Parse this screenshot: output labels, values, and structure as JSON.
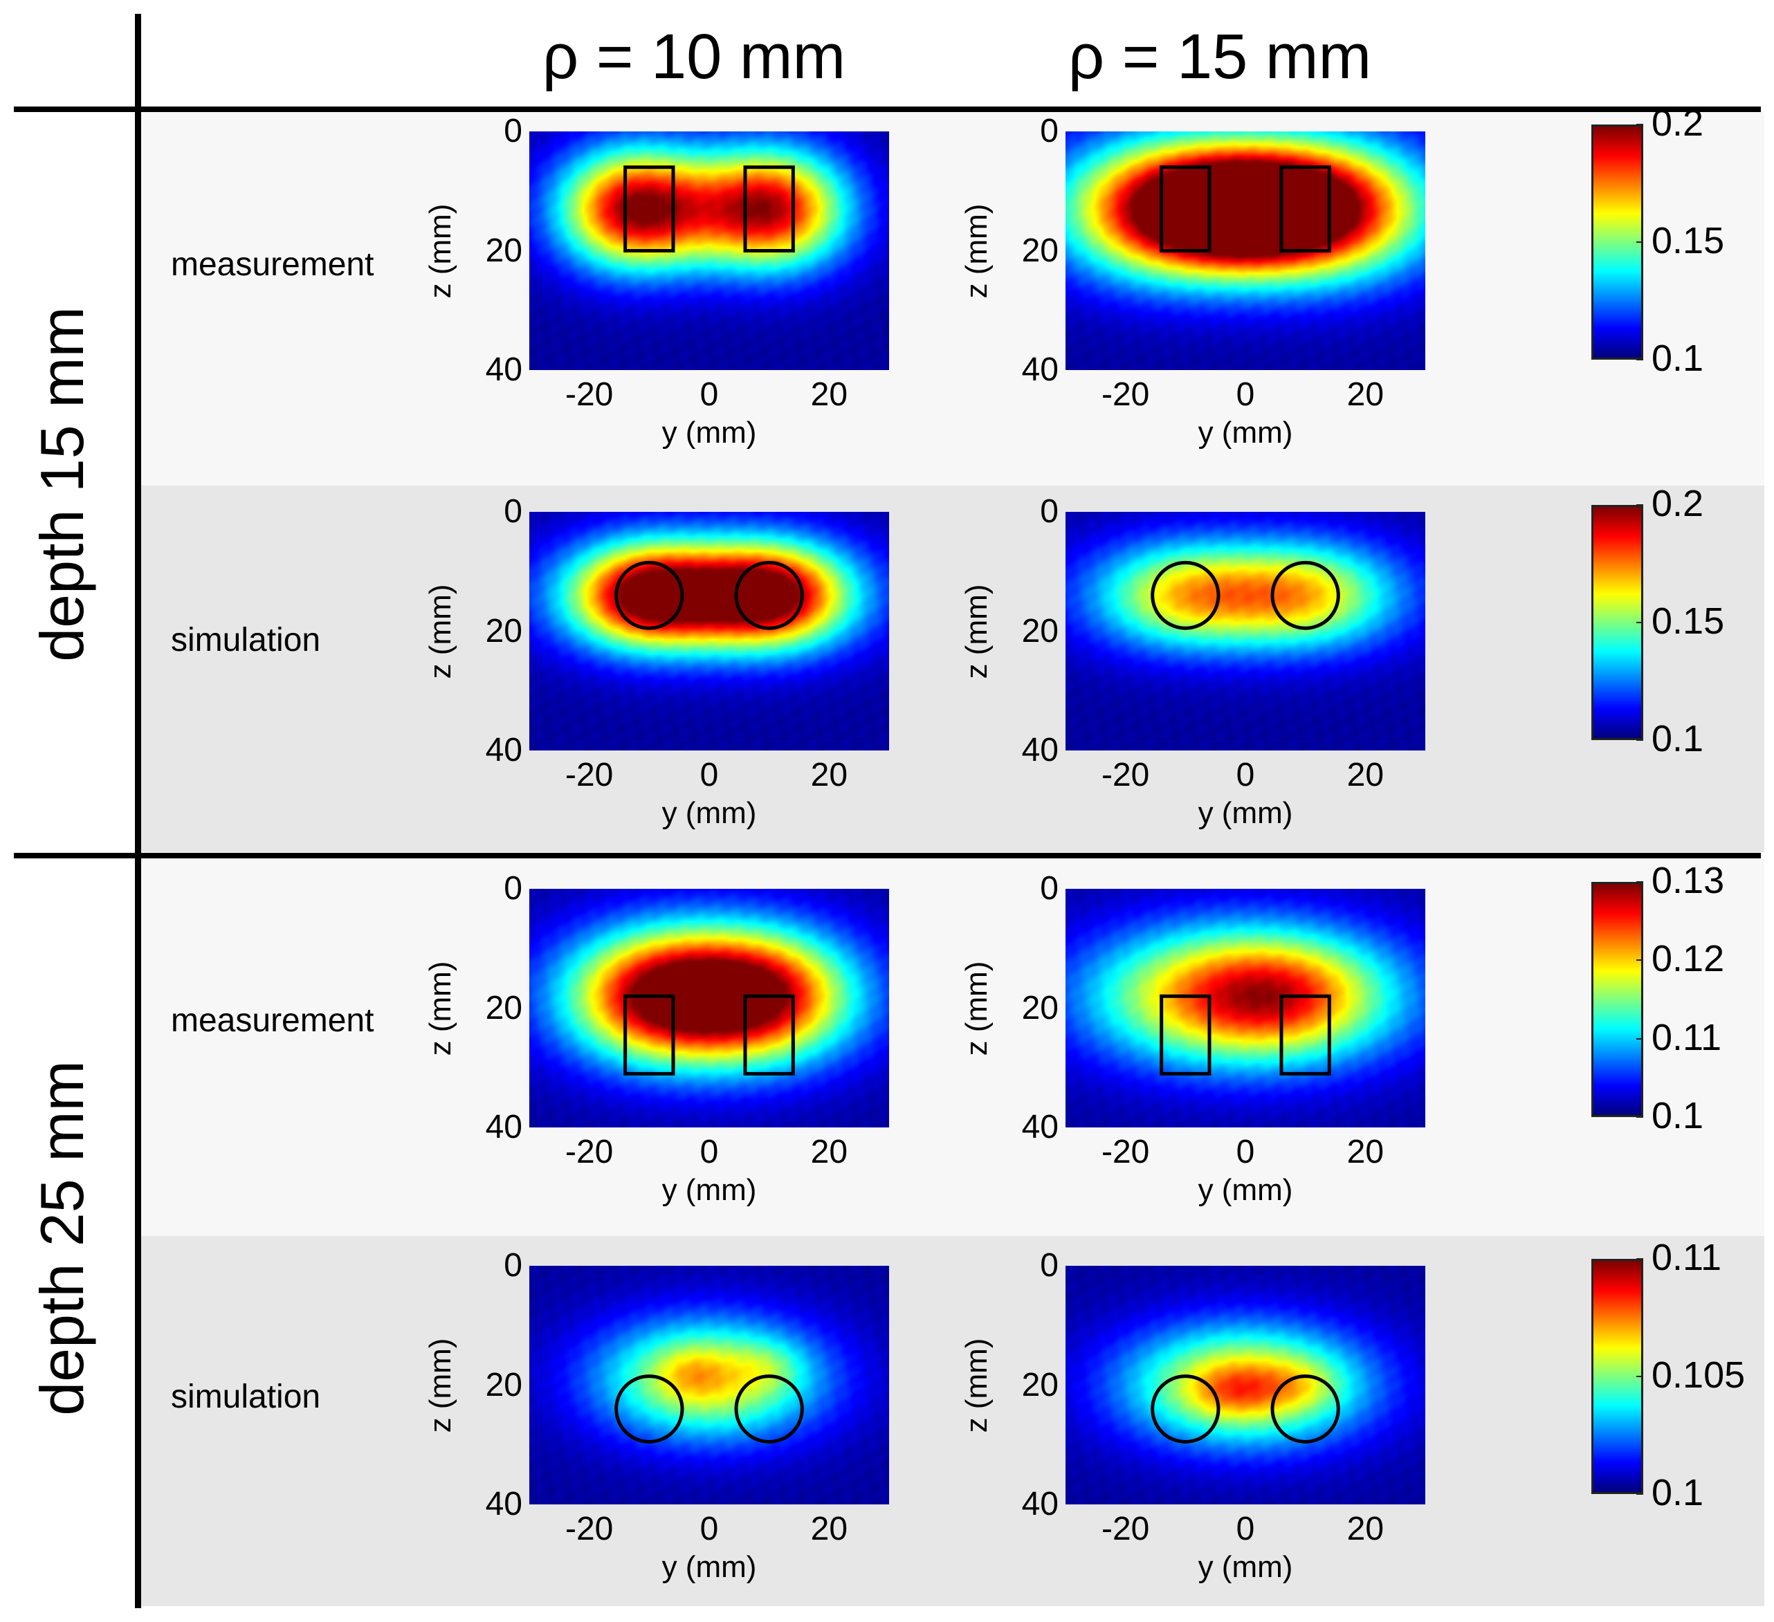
{
  "column_headers": [
    "ρ = 10 mm",
    "ρ = 15 mm"
  ],
  "group_labels": [
    "depth 15 mm",
    "depth 25 mm"
  ],
  "row_labels": [
    "measurement",
    "simulation",
    "measurement",
    "simulation"
  ],
  "colors": {
    "colormap": "jet",
    "marker_outline": "#000000",
    "band_light": "#f7f7f7",
    "band_dark": "#e7e7e7"
  },
  "chart_data": [
    {
      "type": "heatmap",
      "group": "depth 15 mm",
      "row": "measurement",
      "column": "ρ = 10 mm",
      "xlabel": "y (mm)",
      "ylabel": "z (mm)",
      "xlim": [
        -30,
        30
      ],
      "ylim": [
        0,
        40
      ],
      "xticks": [
        -20,
        0,
        20
      ],
      "yticks": [
        0,
        20,
        40
      ],
      "colorbar": {
        "min": 0.1,
        "max": 0.2,
        "ticks": [
          0.1,
          0.15,
          0.2
        ]
      },
      "background": 0.1,
      "blobs": [
        {
          "y": -12,
          "z": 13,
          "sy": 9,
          "sz": 7,
          "amp": 0.1
        },
        {
          "y": 10,
          "z": 13,
          "sy": 9,
          "sz": 7,
          "amp": 0.095
        }
      ],
      "markers": [
        {
          "shape": "rect",
          "y1": -14,
          "y2": -6,
          "z1": 6,
          "z2": 20
        },
        {
          "shape": "rect",
          "y1": 6,
          "y2": 14,
          "z1": 6,
          "z2": 20
        }
      ]
    },
    {
      "type": "heatmap",
      "group": "depth 15 mm",
      "row": "measurement",
      "column": "ρ = 15 mm",
      "xlabel": "y (mm)",
      "ylabel": "z (mm)",
      "xlim": [
        -30,
        30
      ],
      "ylim": [
        0,
        40
      ],
      "xticks": [
        -20,
        0,
        20
      ],
      "yticks": [
        0,
        20,
        40
      ],
      "colorbar": {
        "min": 0.1,
        "max": 0.2,
        "ticks": [
          0.1,
          0.15,
          0.2
        ]
      },
      "background": 0.1,
      "blobs": [
        {
          "y": -12,
          "z": 13,
          "sy": 13,
          "sz": 8,
          "amp": 0.1
        },
        {
          "y": 12,
          "z": 13,
          "sy": 13,
          "sz": 8,
          "amp": 0.1
        },
        {
          "y": 0,
          "z": 13,
          "sy": 10,
          "sz": 6,
          "amp": 0.05
        }
      ],
      "markers": [
        {
          "shape": "rect",
          "y1": -14,
          "y2": -6,
          "z1": 6,
          "z2": 20
        },
        {
          "shape": "rect",
          "y1": 6,
          "y2": 14,
          "z1": 6,
          "z2": 20
        }
      ]
    },
    {
      "type": "heatmap",
      "group": "depth 15 mm",
      "row": "simulation",
      "column": "ρ = 10 mm",
      "xlabel": "y (mm)",
      "ylabel": "z (mm)",
      "xlim": [
        -30,
        30
      ],
      "ylim": [
        0,
        40
      ],
      "xticks": [
        -20,
        0,
        20
      ],
      "yticks": [
        0,
        20,
        40
      ],
      "colorbar": {
        "min": 0.1,
        "max": 0.2,
        "ticks": [
          0.1,
          0.15,
          0.2
        ]
      },
      "background": 0.1,
      "blobs": [
        {
          "y": -10,
          "z": 14,
          "sy": 9,
          "sz": 6,
          "amp": 0.085
        },
        {
          "y": 10,
          "z": 14,
          "sy": 9,
          "sz": 6,
          "amp": 0.085
        },
        {
          "y": 0,
          "z": 14,
          "sy": 18,
          "sz": 7,
          "amp": 0.035
        }
      ],
      "markers": [
        {
          "shape": "circle",
          "y": -10,
          "z": 14,
          "r": 5.5
        },
        {
          "shape": "circle",
          "y": 10,
          "z": 14,
          "r": 5.5
        }
      ]
    },
    {
      "type": "heatmap",
      "group": "depth 15 mm",
      "row": "simulation",
      "column": "ρ = 15 mm",
      "xlabel": "y (mm)",
      "ylabel": "z (mm)",
      "xlim": [
        -30,
        30
      ],
      "ylim": [
        0,
        40
      ],
      "xticks": [
        -20,
        0,
        20
      ],
      "yticks": [
        0,
        20,
        40
      ],
      "colorbar": {
        "min": 0.1,
        "max": 0.2,
        "ticks": [
          0.1,
          0.15,
          0.2
        ]
      },
      "background": 0.1,
      "blobs": [
        {
          "y": -10,
          "z": 14,
          "sy": 10,
          "sz": 6,
          "amp": 0.045
        },
        {
          "y": 10,
          "z": 14,
          "sy": 10,
          "sz": 6,
          "amp": 0.045
        },
        {
          "y": 0,
          "z": 14,
          "sy": 20,
          "sz": 7,
          "amp": 0.025
        }
      ],
      "markers": [
        {
          "shape": "circle",
          "y": -10,
          "z": 14,
          "r": 5.5
        },
        {
          "shape": "circle",
          "y": 10,
          "z": 14,
          "r": 5.5
        }
      ]
    },
    {
      "type": "heatmap",
      "group": "depth 25 mm",
      "row": "measurement",
      "column": "ρ = 10 mm",
      "xlabel": "y (mm)",
      "ylabel": "z (mm)",
      "xlim": [
        -30,
        30
      ],
      "ylim": [
        0,
        40
      ],
      "xticks": [
        -20,
        0,
        20
      ],
      "yticks": [
        0,
        20,
        40
      ],
      "colorbar": {
        "min": 0.1,
        "max": 0.13,
        "ticks": [
          0.1,
          0.11,
          0.12,
          0.13
        ]
      },
      "background": 0.1,
      "blobs": [
        {
          "y": 0,
          "z": 18,
          "sy": 15,
          "sz": 8,
          "amp": 0.032
        },
        {
          "y": -10,
          "z": 18,
          "sy": 9,
          "sz": 7,
          "amp": 0.008
        },
        {
          "y": 10,
          "z": 18,
          "sy": 9,
          "sz": 7,
          "amp": 0.008
        }
      ],
      "markers": [
        {
          "shape": "rect",
          "y1": -14,
          "y2": -6,
          "z1": 18,
          "z2": 31
        },
        {
          "shape": "rect",
          "y1": 6,
          "y2": 14,
          "z1": 18,
          "z2": 31
        }
      ]
    },
    {
      "type": "heatmap",
      "group": "depth 25 mm",
      "row": "measurement",
      "column": "ρ = 15 mm",
      "xlabel": "y (mm)",
      "ylabel": "z (mm)",
      "xlim": [
        -30,
        30
      ],
      "ylim": [
        0,
        40
      ],
      "xticks": [
        -20,
        0,
        20
      ],
      "yticks": [
        0,
        20,
        40
      ],
      "colorbar": {
        "min": 0.1,
        "max": 0.13,
        "ticks": [
          0.1,
          0.11,
          0.12,
          0.13
        ]
      },
      "background": 0.1,
      "blobs": [
        {
          "y": 0,
          "z": 18,
          "sy": 17,
          "sz": 8,
          "amp": 0.027
        },
        {
          "y": 8,
          "z": 18,
          "sy": 9,
          "sz": 6,
          "amp": 0.004
        }
      ],
      "markers": [
        {
          "shape": "rect",
          "y1": -14,
          "y2": -6,
          "z1": 18,
          "z2": 31
        },
        {
          "shape": "rect",
          "y1": 6,
          "y2": 14,
          "z1": 18,
          "z2": 31
        }
      ]
    },
    {
      "type": "heatmap",
      "group": "depth 25 mm",
      "row": "simulation",
      "column": "ρ = 10 mm",
      "xlabel": "y (mm)",
      "ylabel": "z (mm)",
      "xlim": [
        -30,
        30
      ],
      "ylim": [
        0,
        40
      ],
      "xticks": [
        -20,
        0,
        20
      ],
      "yticks": [
        0,
        20,
        40
      ],
      "colorbar": {
        "min": 0.1,
        "max": 0.11,
        "ticks": [
          0.1,
          0.105,
          0.11
        ]
      },
      "background": 0.1,
      "blobs": [
        {
          "y": 0,
          "z": 19,
          "sy": 13,
          "sz": 7,
          "amp": 0.0065
        },
        {
          "y": -3,
          "z": 18,
          "sy": 4,
          "sz": 3,
          "amp": 0.001
        },
        {
          "y": 10,
          "z": 17,
          "sy": 4,
          "sz": 3,
          "amp": 0.001
        }
      ],
      "markers": [
        {
          "shape": "circle",
          "y": -10,
          "z": 24,
          "r": 5.5
        },
        {
          "shape": "circle",
          "y": 10,
          "z": 24,
          "r": 5.5
        }
      ]
    },
    {
      "type": "heatmap",
      "group": "depth 25 mm",
      "row": "simulation",
      "column": "ρ = 15 mm",
      "xlabel": "y (mm)",
      "ylabel": "z (mm)",
      "xlim": [
        -30,
        30
      ],
      "ylim": [
        0,
        40
      ],
      "xticks": [
        -20,
        0,
        20
      ],
      "yticks": [
        0,
        20,
        40
      ],
      "colorbar": {
        "min": 0.1,
        "max": 0.11,
        "ticks": [
          0.1,
          0.105,
          0.11
        ]
      },
      "background": 0.1,
      "blobs": [
        {
          "y": 0,
          "z": 20,
          "sy": 14,
          "sz": 7,
          "amp": 0.007
        },
        {
          "y": -2,
          "z": 21,
          "sy": 5,
          "sz": 3,
          "amp": 0.0015
        },
        {
          "y": 9,
          "z": 20,
          "sy": 5,
          "sz": 3,
          "amp": 0.0012
        }
      ],
      "markers": [
        {
          "shape": "circle",
          "y": -10,
          "z": 24,
          "r": 5.5
        },
        {
          "shape": "circle",
          "y": 10,
          "z": 24,
          "r": 5.5
        }
      ]
    }
  ]
}
